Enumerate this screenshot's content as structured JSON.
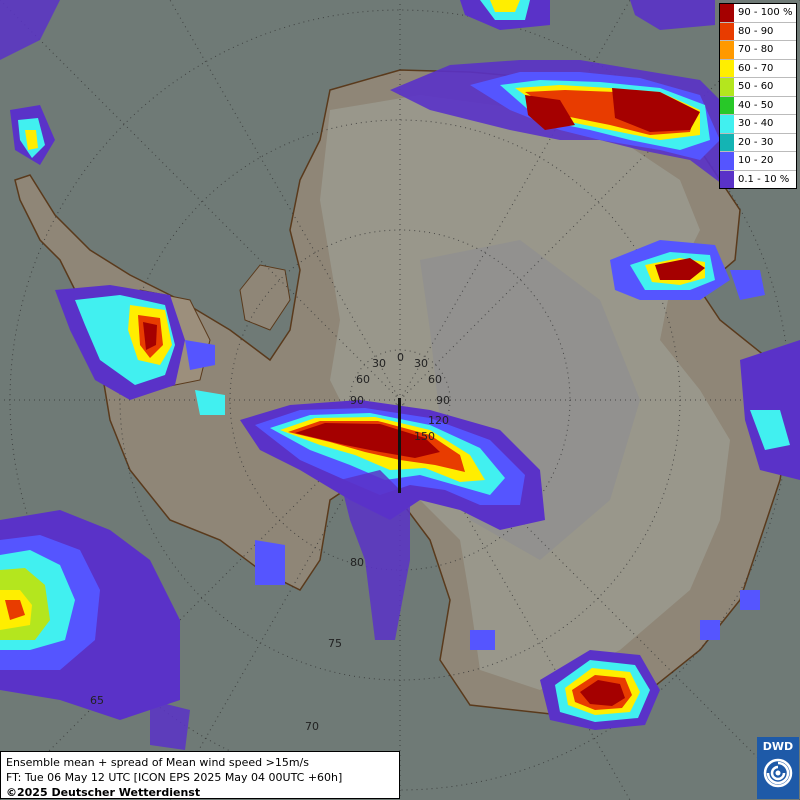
{
  "map": {
    "lat_labels": [
      "65",
      "70",
      "75",
      "80"
    ],
    "lon_labels_left": [
      "30",
      "60",
      "90"
    ],
    "lon_labels_right": [
      "30",
      "60",
      "90",
      "120",
      "150"
    ],
    "pole_label": "0"
  },
  "legend": {
    "items": [
      {
        "label": "90 - 100 %",
        "color": "#a50000"
      },
      {
        "label": "80 - 90",
        "color": "#e83c00"
      },
      {
        "label": "70 - 80",
        "color": "#ff9900"
      },
      {
        "label": "60 - 70",
        "color": "#ffee00"
      },
      {
        "label": "50 - 60",
        "color": "#b4e61e"
      },
      {
        "label": "40 - 50",
        "color": "#28c828"
      },
      {
        "label": "30 - 40",
        "color": "#41f0f0"
      },
      {
        "label": "20 - 30",
        "color": "#14b4b4"
      },
      {
        "label": "10 - 20",
        "color": "#5555ff"
      },
      {
        "label": "0.1 - 10 %",
        "color": "#5a32c8"
      }
    ]
  },
  "info": {
    "line1": "Ensemble mean + spread of Mean wind speed >15m/s",
    "line2": "FT: Tue 06 May 12 UTC [ICON EPS 2025 May 04 00UTC +60h]",
    "line3": "©2025 Deutscher Wetterdienst"
  },
  "logo": {
    "text": "DWD",
    "icon": "dwd-swirl-icon"
  }
}
